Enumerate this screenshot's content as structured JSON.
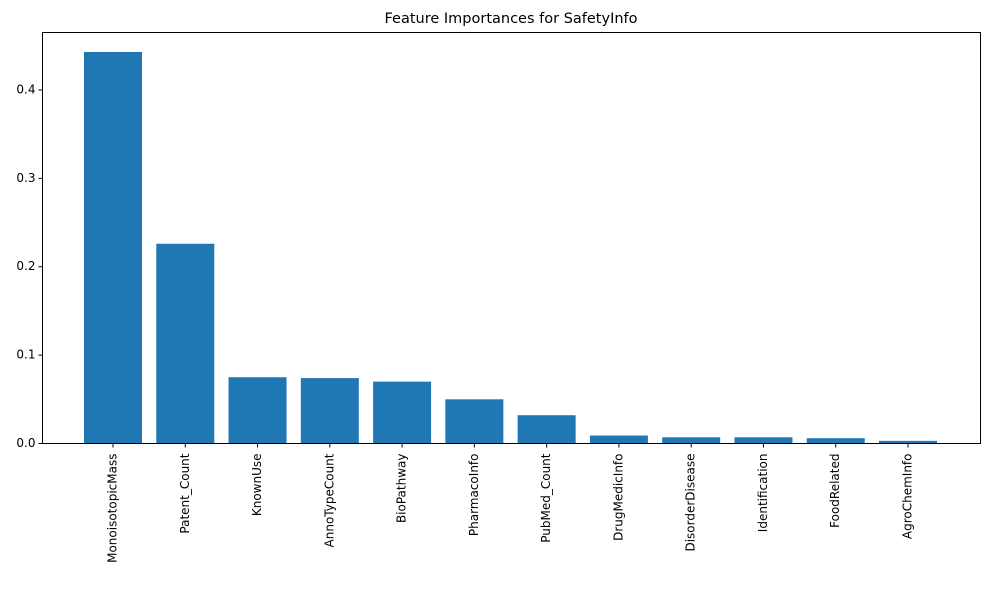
{
  "chart_data": {
    "type": "bar",
    "title": "Feature Importances for SafetyInfo",
    "xlabel": "",
    "ylabel": "",
    "categories": [
      "MonoisotopicMass",
      "Patent_Count",
      "KnownUse",
      "AnnoTypeCount",
      "BioPathway",
      "PharmacoInfo",
      "PubMed_Count",
      "DrugMedicInfo",
      "DisorderDisease",
      "Identification",
      "FoodRelated",
      "AgroChemInfo"
    ],
    "values": [
      0.443,
      0.226,
      0.075,
      0.074,
      0.07,
      0.05,
      0.032,
      0.009,
      0.007,
      0.007,
      0.006,
      0.003
    ],
    "ylim": [
      0,
      0.465
    ],
    "yticks": [
      0.0,
      0.1,
      0.2,
      0.3,
      0.4
    ],
    "ytick_labels": [
      "0.0",
      "0.1",
      "0.2",
      "0.3",
      "0.4"
    ],
    "bar_color": "#1f77b4",
    "grid": false,
    "legend": "none"
  }
}
